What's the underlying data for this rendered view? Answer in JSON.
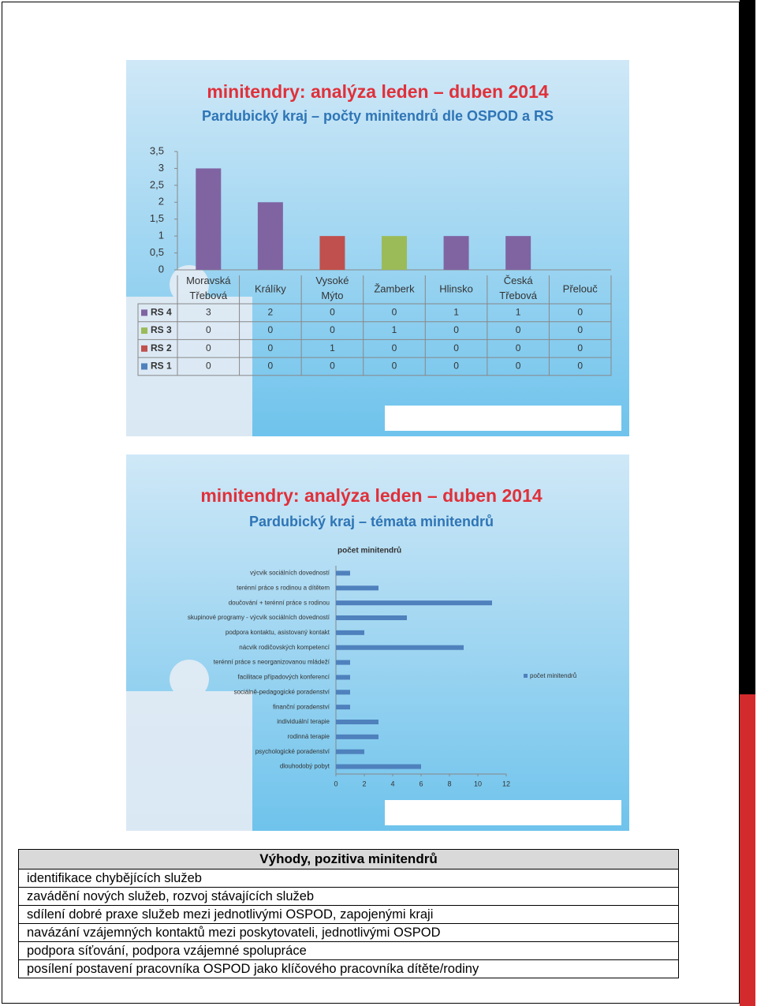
{
  "chart_data": [
    {
      "type": "bar",
      "stacked": true,
      "title": "minitendry: analýza leden – duben 2014",
      "subtitle": "Pardubický kraj – počty minitendrů dle OSPOD a RS",
      "categories": [
        "Moravská Třebová",
        "Králíky",
        "Vysoké Mýto",
        "Žamberk",
        "Hlinsko",
        "Česká Třebová",
        "Přelouč"
      ],
      "series": [
        {
          "name": "RS 4",
          "color": "#8064a2",
          "values": [
            3,
            2,
            0,
            0,
            1,
            1,
            0
          ]
        },
        {
          "name": "RS 3",
          "color": "#9bbb59",
          "values": [
            0,
            0,
            0,
            1,
            0,
            0,
            0
          ]
        },
        {
          "name": "RS 2",
          "color": "#c0504d",
          "values": [
            0,
            0,
            1,
            0,
            0,
            0,
            0
          ]
        },
        {
          "name": "RS 1",
          "color": "#4f81bd",
          "values": [
            0,
            0,
            0,
            0,
            0,
            0,
            0
          ]
        }
      ],
      "ylim": [
        0,
        3.5
      ],
      "yticks": [
        0,
        {
          "value": 0.5,
          "label": "0,5"
        },
        1,
        {
          "value": 1.5,
          "label": "1,5"
        },
        2,
        {
          "value": 2.5,
          "label": "2,5"
        },
        3,
        {
          "value": 3.5,
          "label": "3,5"
        }
      ],
      "data_table": true
    },
    {
      "type": "barh",
      "title": "minitendry: analýza leden – duben 2014",
      "subtitle": "Pardubický kraj – témata minitendrů",
      "x_label": "počet minitendrů",
      "categories": [
        "výcvik sociálních dovedností",
        "terénní práce s rodinou a dítětem",
        "doučování + terénní práce s rodinou",
        "skupinové programy - výcvik sociálních dovedností",
        "podpora kontaktu, asistovaný kontakt",
        "nácvik rodičovských kompetencí",
        "terénní práce s neorganizovanou mládeží",
        "facilitace případových konferencí",
        "sociálně-pedagogické poradenství",
        "finanční poradenství",
        "individuální terapie",
        "rodinná terapie",
        "psychologické poradenství",
        "dlouhodobý pobyt"
      ],
      "series": [
        {
          "name": "počet minitendrů",
          "color": "#4f81bd",
          "values": [
            1,
            3,
            11,
            5,
            2,
            9,
            1,
            1,
            1,
            1,
            3,
            3,
            2,
            6
          ]
        }
      ],
      "xlim": [
        0,
        12
      ],
      "xticks": [
        0,
        2,
        4,
        6,
        8,
        10,
        12
      ],
      "legend": "right"
    }
  ],
  "table": {
    "title": "Výhody, pozitiva minitendrů",
    "rows": [
      "identifikace chybějících služeb",
      "zavádění nových služeb, rozvoj stávajících služeb",
      "sdílení dobré praxe služeb mezi jednotlivými OSPOD, zapojenými kraji",
      "navázání vzájemných kontaktů mezi poskytovateli, jednotlivými OSPOD",
      "podpora síťování, podpora vzájemné spolupráce",
      "posílení postavení pracovníka OSPOD  jako klíčového pracovníka dítěte/rodiny"
    ]
  }
}
